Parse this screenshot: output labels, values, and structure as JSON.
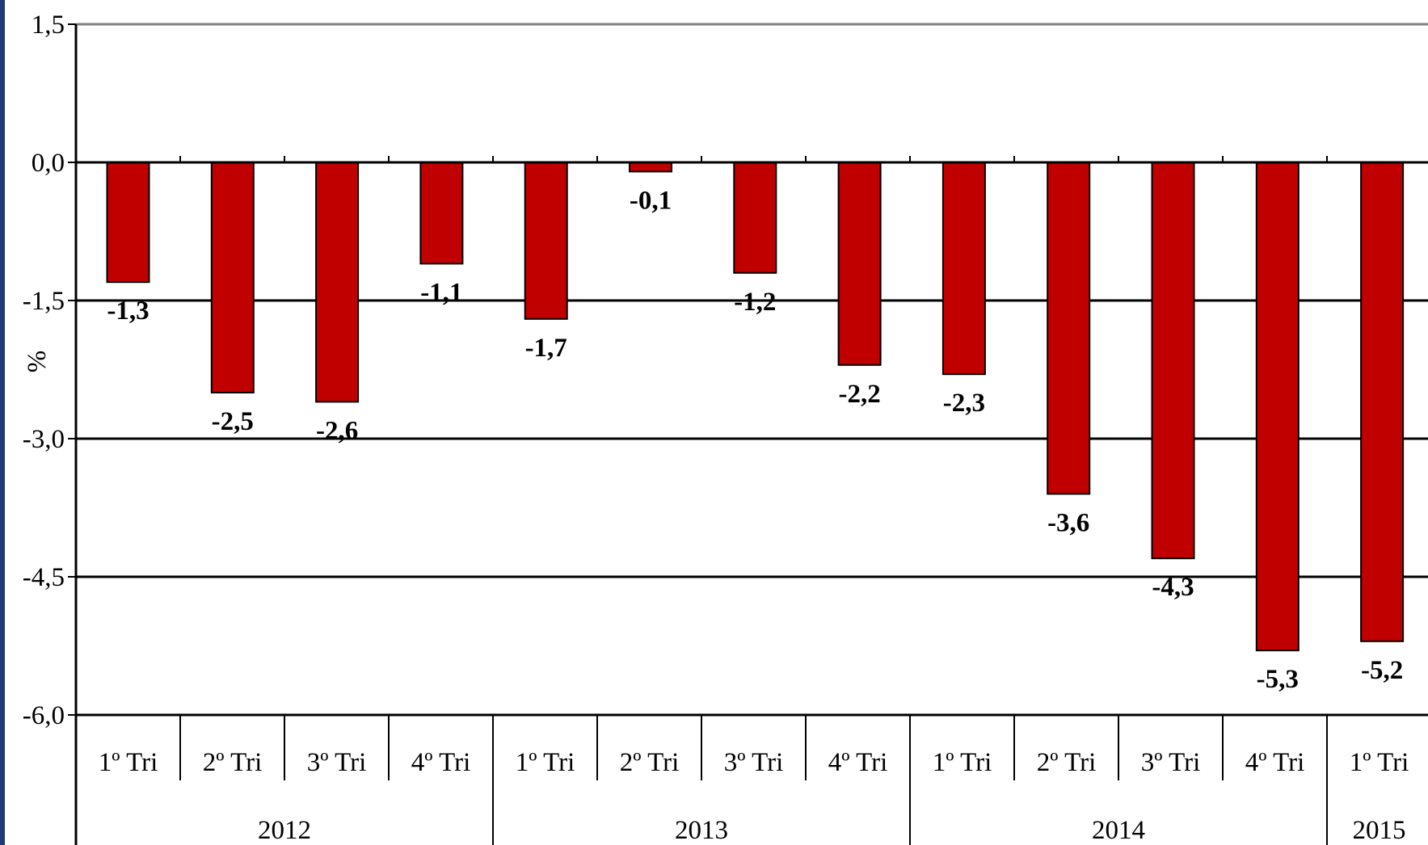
{
  "chart_data": {
    "type": "bar",
    "ylabel": "%",
    "ylim": [
      -6.0,
      1.5
    ],
    "yticks": [
      1.5,
      0.0,
      -1.5,
      -3.0,
      -4.5,
      -6.0
    ],
    "ytick_labels": [
      "1,5",
      "0,0",
      "-1,5",
      "-3,0",
      "-4,5",
      "-6,0"
    ],
    "grid": true,
    "legend": "none",
    "categories": [
      "1º Tri",
      "2º Tri",
      "3º Tri",
      "4º Tri",
      "1º Tri",
      "2º Tri",
      "3º Tri",
      "4º Tri",
      "1º Tri",
      "2º Tri",
      "3º Tri",
      "4º Tri",
      "1º Tri"
    ],
    "groups": [
      {
        "label": "2012",
        "count": 4
      },
      {
        "label": "2013",
        "count": 4
      },
      {
        "label": "2014",
        "count": 4
      },
      {
        "label": "2015",
        "count": 1
      }
    ],
    "values": [
      -1.3,
      -2.5,
      -2.6,
      -1.1,
      -1.7,
      -0.1,
      -1.2,
      -2.2,
      -2.3,
      -3.6,
      -4.3,
      -5.3,
      -5.2
    ],
    "value_labels": [
      "-1,3",
      "-2,5",
      "-2,6",
      "-1,1",
      "-1,7",
      "-0,1",
      "-1,2",
      "-2,2",
      "-2,3",
      "-3,6",
      "-4,3",
      "-5,3",
      "-5,2"
    ],
    "colors": {
      "bar": "#c00000",
      "bar_stroke": "#000000",
      "frame_left": "#1f3a7a",
      "plot_border": "#808080"
    }
  }
}
